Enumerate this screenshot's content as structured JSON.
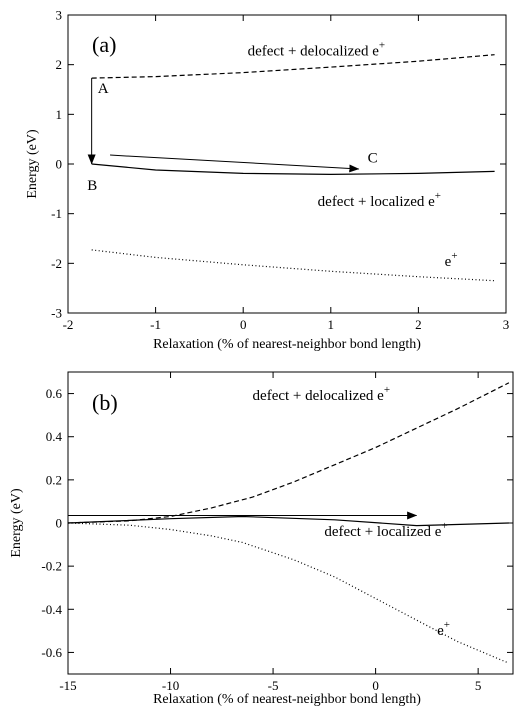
{
  "chart_data": [
    {
      "type": "line",
      "panel_label": "(a)",
      "xlabel": "Relaxation (% of nearest-neighbor bond length)",
      "ylabel": "Energy (eV)",
      "xlim": [
        -2,
        3
      ],
      "ylim": [
        -3,
        3
      ],
      "xticks": [
        -2,
        -1,
        0,
        1,
        2,
        3
      ],
      "yticks": [
        -3,
        -2,
        -1,
        0,
        1,
        2,
        3
      ],
      "grid": false,
      "series": [
        {
          "name": "defect + delocalized e+",
          "style": "dashed",
          "x": [
            -1.73,
            -1.0,
            0.0,
            1.0,
            2.0,
            2.87
          ],
          "y": [
            1.73,
            1.76,
            1.84,
            1.95,
            2.07,
            2.2
          ]
        },
        {
          "name": "defect + localized e+",
          "style": "solid",
          "x": [
            -1.73,
            -1.0,
            0.0,
            1.0,
            2.0,
            2.87
          ],
          "y": [
            0.0,
            -0.12,
            -0.19,
            -0.21,
            -0.19,
            -0.15
          ]
        },
        {
          "name": "e+",
          "style": "dotted",
          "x": [
            -1.73,
            -1.0,
            0.0,
            1.0,
            2.0,
            2.87
          ],
          "y": [
            -1.73,
            -1.88,
            -2.03,
            -2.16,
            -2.27,
            -2.35
          ]
        }
      ],
      "annotations": [
        {
          "text": "defect + delocalized e",
          "sup": "+",
          "x": 0.05,
          "y": 2.18
        },
        {
          "text": "defect + localized e",
          "sup": "+",
          "x": 0.85,
          "y": -0.85
        },
        {
          "text": "e",
          "sup": "+",
          "x": 2.3,
          "y": -2.05
        }
      ],
      "points": [
        {
          "label": "A",
          "x": -1.66,
          "y": 1.43
        },
        {
          "label": "B",
          "x": -1.78,
          "y": -0.52
        },
        {
          "label": "C",
          "x": 1.42,
          "y": 0.03
        }
      ],
      "arrows": [
        {
          "x1": -1.73,
          "y1": 1.73,
          "x2": -1.73,
          "y2": 0.0
        },
        {
          "x1": -1.52,
          "y1": 0.18,
          "x2": 1.32,
          "y2": -0.1
        }
      ]
    },
    {
      "type": "line",
      "panel_label": "(b)",
      "xlabel": "Relaxation (% of nearest-neighbor bond length)",
      "ylabel": "Energy (eV)",
      "xlim": [
        -15,
        6.7
      ],
      "ylim": [
        -0.7,
        0.7
      ],
      "xticks": [
        -15,
        -10,
        -5,
        0,
        5
      ],
      "yticks": [
        -0.6,
        -0.4,
        -0.2,
        0,
        0.2,
        0.4,
        0.6
      ],
      "ytick_labels": [
        "-0.6",
        "-0.4",
        "-0.2",
        "0",
        "0.2",
        "0.4",
        "0.6"
      ],
      "grid": false,
      "series": [
        {
          "name": "defect + delocalized e+",
          "style": "dashed",
          "x": [
            -15,
            -12,
            -10,
            -8,
            -6,
            -4,
            -2,
            0,
            2,
            4,
            6.5
          ],
          "y": [
            0.0,
            0.01,
            0.03,
            0.07,
            0.12,
            0.19,
            0.27,
            0.35,
            0.44,
            0.53,
            0.65
          ]
        },
        {
          "name": "defect + localized e+",
          "style": "solid",
          "x": [
            -15,
            -10,
            -6.5,
            -2,
            2,
            6.5
          ],
          "y": [
            0.0,
            0.02,
            0.03,
            0.015,
            -0.012,
            0.0
          ]
        },
        {
          "name": "e+",
          "style": "dotted",
          "x": [
            -15,
            -12,
            -10,
            -8,
            -6.5,
            -4,
            -2,
            0,
            2,
            4,
            6.5
          ],
          "y": [
            0.0,
            -0.01,
            -0.03,
            -0.06,
            -0.09,
            -0.17,
            -0.25,
            -0.35,
            -0.45,
            -0.55,
            -0.65
          ]
        }
      ],
      "annotations": [
        {
          "text": "defect + delocalized e",
          "sup": "+",
          "x": -6.0,
          "y": 0.57
        },
        {
          "text": "defect + localized e",
          "sup": "+",
          "x": -2.5,
          "y": -0.06
        },
        {
          "text": "e",
          "sup": "+",
          "x": 3.0,
          "y": -0.52
        }
      ],
      "points": [],
      "arrows": [
        {
          "x1": -15,
          "y1": 0.035,
          "x2": 2.0,
          "y2": 0.035
        }
      ]
    }
  ]
}
